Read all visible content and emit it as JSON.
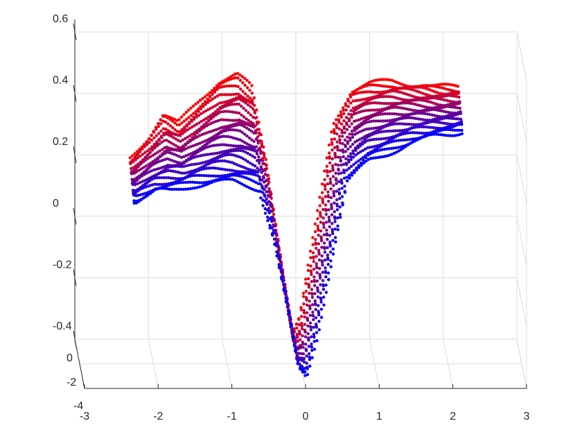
{
  "chart_data": {
    "type": "scatter",
    "view": "3d",
    "title": "",
    "xlabel": "",
    "ylabel": "",
    "zlabel": "",
    "grid": true,
    "xlim": [
      -3,
      3
    ],
    "zlim": [
      -0.4,
      0.6
    ],
    "depth_lim": [
      -4,
      0
    ],
    "x_ticks": [
      "-3",
      "-2",
      "-1",
      "0",
      "1",
      "2",
      "3"
    ],
    "z_ticks": [
      "-0.4",
      "-0.2",
      "0",
      "0.2",
      "0.4",
      "0.6"
    ],
    "depth_ticks": [
      "-4",
      "-2",
      "0"
    ],
    "color_start": "#ff0000",
    "color_end": "#0000ff",
    "trace_count": 22,
    "series": [
      {
        "color": "#ff0000",
        "x": [
          -2.25,
          -2.0,
          -1.8,
          -1.6,
          -1.3,
          -1.05,
          -0.8,
          -0.6,
          -0.4,
          -0.2,
          -0.05,
          0.05,
          0.25,
          0.5,
          0.75,
          1.0,
          1.3,
          1.6,
          1.9,
          2.1,
          2.2
        ],
        "y": [
          0.19,
          0.26,
          0.33,
          0.3,
          0.38,
          0.44,
          0.46,
          0.42,
          0.18,
          -0.15,
          -0.38,
          -0.33,
          -0.05,
          0.3,
          0.41,
          0.43,
          0.44,
          0.43,
          0.42,
          0.42,
          0.42
        ]
      },
      {
        "color": "#0000ff",
        "x": [
          -2.25,
          -2.0,
          -1.8,
          -1.5,
          -1.2,
          -0.95,
          -0.8,
          -0.6,
          -0.4,
          -0.2,
          -0.05,
          0.05,
          0.2,
          0.4,
          0.6,
          0.9,
          1.2,
          1.5,
          1.8,
          2.05,
          2.2
        ],
        "y": [
          0.06,
          0.09,
          0.09,
          0.11,
          0.12,
          0.12,
          0.11,
          0.1,
          -0.06,
          -0.3,
          -0.49,
          -0.52,
          -0.38,
          -0.12,
          0.12,
          0.19,
          0.22,
          0.25,
          0.27,
          0.28,
          0.29
        ]
      }
    ]
  }
}
